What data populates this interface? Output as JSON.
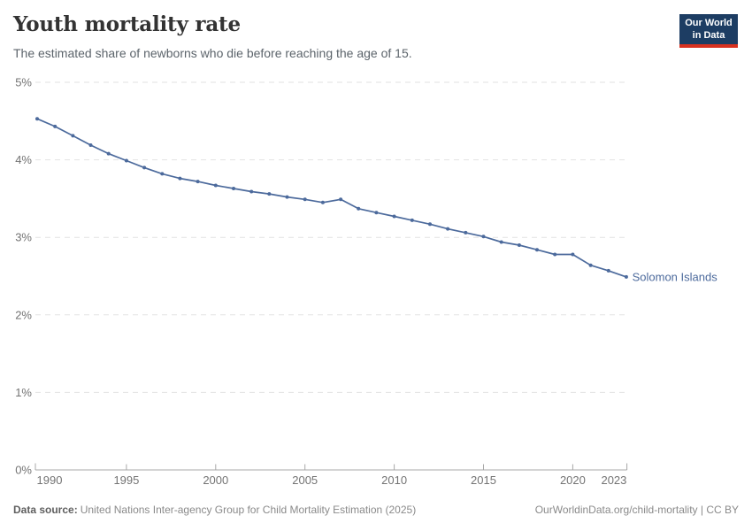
{
  "header": {
    "title": "Youth mortality rate",
    "subtitle": "The estimated share of newborns who die before reaching the age of 15.",
    "logo": {
      "line1": "Our World",
      "line2": "in Data"
    }
  },
  "chart_data": {
    "type": "line",
    "title": "Youth mortality rate",
    "xlabel": "",
    "ylabel": "",
    "xlim": [
      1990,
      2023
    ],
    "ylim": [
      0,
      5
    ],
    "grid": "horizontal-dashed",
    "legend_position": "end-of-line-label",
    "x_ticks": [
      1990,
      1995,
      2000,
      2005,
      2010,
      2015,
      2020,
      2023
    ],
    "y_ticks": [
      {
        "value": 0,
        "label": "0%"
      },
      {
        "value": 1,
        "label": "1%"
      },
      {
        "value": 2,
        "label": "2%"
      },
      {
        "value": 3,
        "label": "3%"
      },
      {
        "value": 4,
        "label": "4%"
      },
      {
        "value": 5,
        "label": "5%"
      }
    ],
    "series": [
      {
        "name": "Solomon Islands",
        "color": "#4c6a9c",
        "x": [
          1990,
          1991,
          1992,
          1993,
          1994,
          1995,
          1996,
          1997,
          1998,
          1999,
          2000,
          2001,
          2002,
          2003,
          2004,
          2005,
          2006,
          2007,
          2008,
          2009,
          2010,
          2011,
          2012,
          2013,
          2014,
          2015,
          2016,
          2017,
          2018,
          2019,
          2020,
          2021,
          2022,
          2023
        ],
        "values": [
          4.53,
          4.43,
          4.31,
          4.19,
          4.08,
          3.99,
          3.9,
          3.82,
          3.76,
          3.72,
          3.67,
          3.63,
          3.59,
          3.56,
          3.52,
          3.49,
          3.45,
          3.49,
          3.37,
          3.32,
          3.27,
          3.22,
          3.17,
          3.11,
          3.06,
          3.01,
          2.94,
          2.9,
          2.84,
          2.78,
          2.78,
          2.64,
          2.57,
          2.49
        ]
      }
    ]
  },
  "footer": {
    "datasource_label": "Data source:",
    "datasource": "United Nations Inter-agency Group for Child Mortality Estimation (2025)",
    "url": "OurWorldinData.org/child-mortality | CC BY"
  },
  "colors": {
    "line": "#4c6a9c",
    "grid": "#e2e2e2",
    "axis": "#a8a8a8",
    "tick_label": "#737373",
    "logo_bg": "#1d3d63",
    "logo_accent": "#d8311f"
  }
}
